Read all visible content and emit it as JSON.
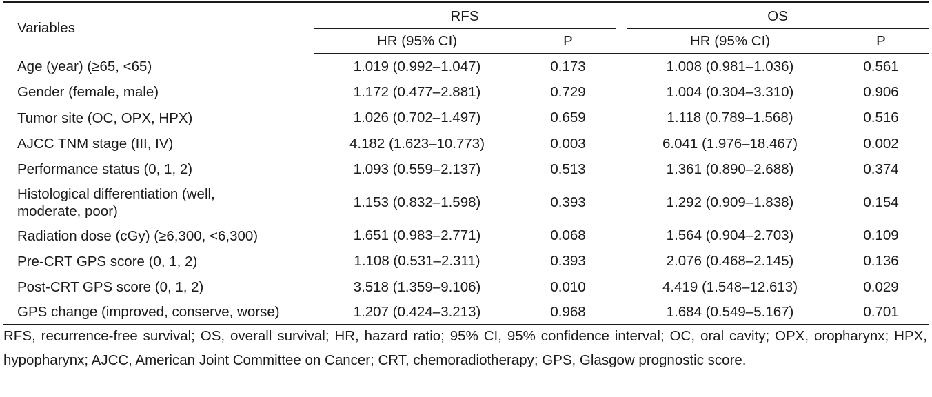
{
  "table": {
    "header": {
      "variables": "Variables",
      "groups": [
        {
          "label": "RFS",
          "hr": "HR (95% CI)",
          "p": "P"
        },
        {
          "label": "OS",
          "hr": "HR (95% CI)",
          "p": "P"
        }
      ]
    },
    "rows": [
      {
        "variable": "Age (year) (≥65, <65)",
        "rfs_hr": "1.019 (0.992–1.047)",
        "rfs_p": "0.173",
        "os_hr": "1.008 (0.981–1.036)",
        "os_p": "0.561"
      },
      {
        "variable": "Gender (female, male)",
        "rfs_hr": "1.172 (0.477–2.881)",
        "rfs_p": "0.729",
        "os_hr": "1.004 (0.304–3.310)",
        "os_p": "0.906"
      },
      {
        "variable": "Tumor site (OC, OPX, HPX)",
        "rfs_hr": "1.026 (0.702–1.497)",
        "rfs_p": "0.659",
        "os_hr": "1.118 (0.789–1.568)",
        "os_p": "0.516"
      },
      {
        "variable": "AJCC TNM stage (III, IV)",
        "rfs_hr": "4.182 (1.623–10.773)",
        "rfs_p": "0.003",
        "os_hr": "6.041 (1.976–18.467)",
        "os_p": "0.002"
      },
      {
        "variable": "Performance status (0, 1, 2)",
        "rfs_hr": "1.093 (0.559–2.137)",
        "rfs_p": "0.513",
        "os_hr": "1.361 (0.890–2.688)",
        "os_p": "0.374"
      },
      {
        "variable_line1": "Histological differentiation (well,",
        "variable_line2": "moderate, poor)",
        "rfs_hr": "1.153 (0.832–1.598)",
        "rfs_p": "0.393",
        "os_hr": "1.292 (0.909–1.838)",
        "os_p": "0.154"
      },
      {
        "variable": "Radiation dose (cGy) (≥6,300, <6,300)",
        "rfs_hr": "1.651 (0.983–2.771)",
        "rfs_p": "0.068",
        "os_hr": "1.564 (0.904–2.703)",
        "os_p": "0.109"
      },
      {
        "variable": "Pre-CRT GPS score (0, 1, 2)",
        "rfs_hr": "1.108 (0.531–2.311)",
        "rfs_p": "0.393",
        "os_hr": "2.076 (0.468–2.145)",
        "os_p": "0.136"
      },
      {
        "variable": "Post-CRT GPS score (0, 1, 2)",
        "rfs_hr": "3.518 (1.359–9.106)",
        "rfs_p": "0.010",
        "os_hr": "4.419 (1.548–12.613)",
        "os_p": "0.029"
      },
      {
        "variable": "GPS change (improved, conserve, worse)",
        "rfs_hr": "1.207 (0.424–3.213)",
        "rfs_p": "0.968",
        "os_hr": "1.684 (0.549–5.167)",
        "os_p": "0.701"
      }
    ]
  },
  "footnote": "RFS, recurrence-free survival; OS, overall survival; HR, hazard ratio; 95% CI, 95% confidence interval; OC, oral cavity; OPX, oropharynx; HPX, hypopharynx; AJCC, American Joint Committee on Cancer; CRT, chemoradiotherapy; GPS, Glasgow prognostic score."
}
